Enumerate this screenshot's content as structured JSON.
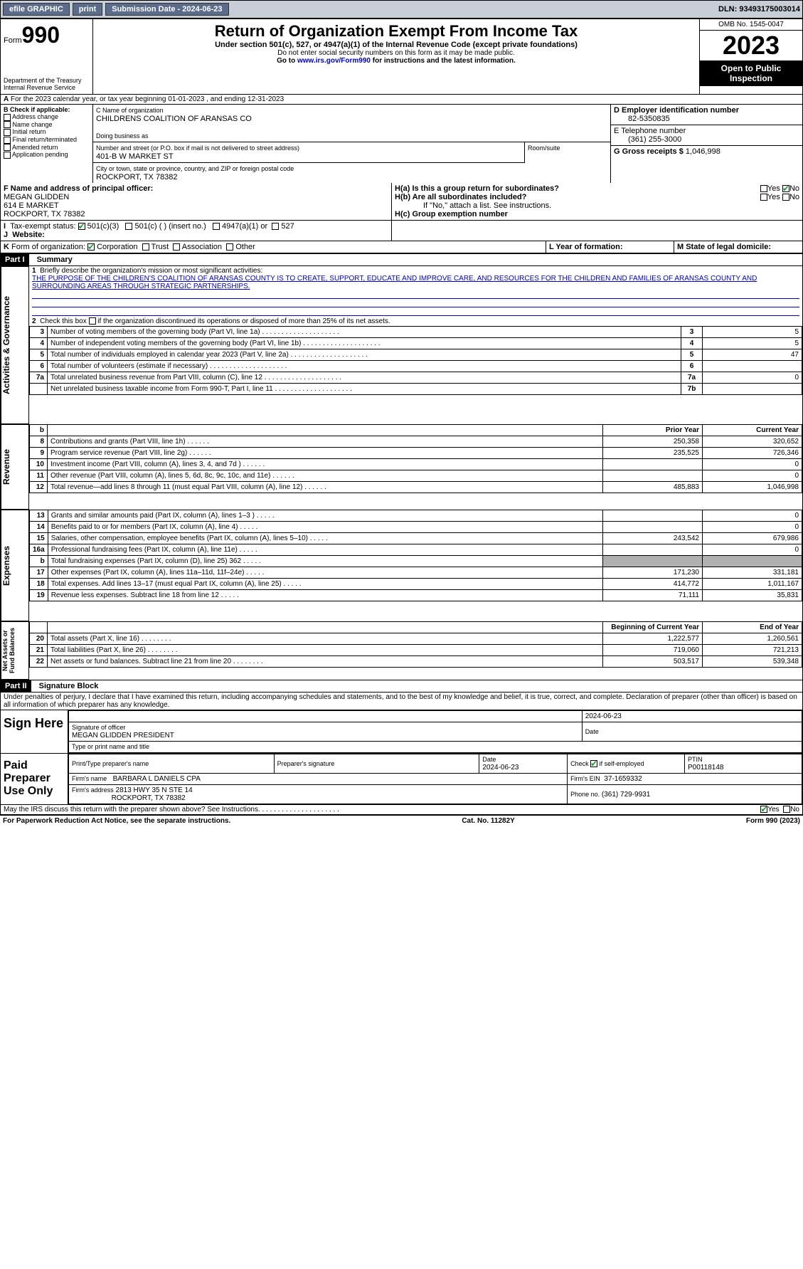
{
  "toolbar": {
    "efile": "efile GRAPHIC",
    "print": "print",
    "submission": "Submission Date - 2024-06-23",
    "dln": "DLN: 93493175003014"
  },
  "header": {
    "form_label": "Form",
    "form_num": "990",
    "dept": "Department of the Treasury Internal Revenue Service",
    "title": "Return of Organization Exempt From Income Tax",
    "sub": "Under section 501(c), 527, or 4947(a)(1) of the Internal Revenue Code (except private foundations)",
    "note1": "Do not enter social security numbers on this form as it may be made public.",
    "note2_pre": "Go to ",
    "note2_link": "www.irs.gov/Form990",
    "note2_post": " for instructions and the latest information.",
    "omb": "OMB No. 1545-0047",
    "year": "2023",
    "inspect": "Open to Public Inspection"
  },
  "line_a": "For the 2023 calendar year, or tax year beginning 01-01-2023    , and ending 12-31-2023",
  "box_b": {
    "title": "B Check if applicable:",
    "opts": [
      "Address change",
      "Name change",
      "Initial return",
      "Final return/terminated",
      "Amended return",
      "Application pending"
    ]
  },
  "box_c": {
    "label_name": "C Name of organization",
    "name": "CHILDRENS COALITION OF ARANSAS CO",
    "dba_label": "Doing business as",
    "addr_label": "Number and street (or P.O. box if mail is not delivered to street address)",
    "addr": "401-B W MARKET ST",
    "room_label": "Room/suite",
    "city_label": "City or town, state or province, country, and ZIP or foreign postal code",
    "city": "ROCKPORT, TX  78382"
  },
  "box_d": {
    "label": "D Employer identification number",
    "val": "82-5350835"
  },
  "box_e": {
    "label": "E Telephone number",
    "val": "(361) 255-3000"
  },
  "box_g": {
    "label": "G Gross receipts $",
    "val": "1,046,998"
  },
  "box_f": {
    "label": "F  Name and address of principal officer:",
    "name": "MEGAN GLIDDEN",
    "addr1": "614 E MARKET",
    "addr2": "ROCKPORT, TX  78382"
  },
  "box_h": {
    "a_label": "H(a)  Is this a group return for subordinates?",
    "b_label": "H(b)  Are all subordinates included?",
    "b_note": "If \"No,\" attach a list. See instructions.",
    "c_label": "H(c)  Group exemption number"
  },
  "box_i": {
    "label": "Tax-exempt status:",
    "o1": "501(c)(3)",
    "o2": "501(c) (  ) (insert no.)",
    "o3": "4947(a)(1) or",
    "o4": "527"
  },
  "box_j": "Website:",
  "box_k": "Form of organization:",
  "k_opts": [
    "Corporation",
    "Trust",
    "Association",
    "Other"
  ],
  "box_l": "L Year of formation:",
  "box_m": "M State of legal domicile:",
  "part1": {
    "hdr": "Part I",
    "title": "Summary"
  },
  "summary": {
    "side_ag": "Activities & Governance",
    "side_rev": "Revenue",
    "side_exp": "Expenses",
    "side_na": "Net Assets or Fund Balances",
    "l1_label": "Briefly describe the organization's mission or most significant activities:",
    "l1_text": "THE PURPOSE OF THE CHILDREN'S COALITION OF ARANSAS COUNTY IS TO CREATE, SUPPORT, EDUCATE AND IMPROVE CARE, AND RESOURCES FOR THE CHILDREN AND FAMILIES OF ARANSAS COUNTY AND SURROUNDING AREAS THROUGH STRATEGIC PARTNERSHIPS.",
    "l2": "Check this box      if the organization discontinued its operations or disposed of more than 25% of its net assets.",
    "rows_ag": [
      {
        "n": "3",
        "t": "Number of voting members of the governing body (Part VI, line 1a)",
        "b": "3",
        "v": "5"
      },
      {
        "n": "4",
        "t": "Number of independent voting members of the governing body (Part VI, line 1b)",
        "b": "4",
        "v": "5"
      },
      {
        "n": "5",
        "t": "Total number of individuals employed in calendar year 2023 (Part V, line 2a)",
        "b": "5",
        "v": "47"
      },
      {
        "n": "6",
        "t": "Total number of volunteers (estimate if necessary)",
        "b": "6",
        "v": ""
      },
      {
        "n": "7a",
        "t": "Total unrelated business revenue from Part VIII, column (C), line 12",
        "b": "7a",
        "v": "0"
      },
      {
        "n": "",
        "t": "Net unrelated business taxable income from Form 990-T, Part I, line 11",
        "b": "7b",
        "v": ""
      }
    ],
    "hdr_prior": "Prior Year",
    "hdr_curr": "Current Year",
    "rows_rev": [
      {
        "n": "8",
        "t": "Contributions and grants (Part VIII, line 1h)",
        "p": "250,358",
        "c": "320,652"
      },
      {
        "n": "9",
        "t": "Program service revenue (Part VIII, line 2g)",
        "p": "235,525",
        "c": "726,346"
      },
      {
        "n": "10",
        "t": "Investment income (Part VIII, column (A), lines 3, 4, and 7d )",
        "p": "",
        "c": "0"
      },
      {
        "n": "11",
        "t": "Other revenue (Part VIII, column (A), lines 5, 6d, 8c, 9c, 10c, and 11e)",
        "p": "",
        "c": "0"
      },
      {
        "n": "12",
        "t": "Total revenue—add lines 8 through 11 (must equal Part VIII, column (A), line 12)",
        "p": "485,883",
        "c": "1,046,998"
      }
    ],
    "rows_exp": [
      {
        "n": "13",
        "t": "Grants and similar amounts paid (Part IX, column (A), lines 1–3 )",
        "p": "",
        "c": "0"
      },
      {
        "n": "14",
        "t": "Benefits paid to or for members (Part IX, column (A), line 4)",
        "p": "",
        "c": "0"
      },
      {
        "n": "15",
        "t": "Salaries, other compensation, employee benefits (Part IX, column (A), lines 5–10)",
        "p": "243,542",
        "c": "679,986"
      },
      {
        "n": "16a",
        "t": "Professional fundraising fees (Part IX, column (A), line 11e)",
        "p": "",
        "c": "0"
      },
      {
        "n": "b",
        "t": "Total fundraising expenses (Part IX, column (D), line 25) 362",
        "p": "grey",
        "c": "grey"
      },
      {
        "n": "17",
        "t": "Other expenses (Part IX, column (A), lines 11a–11d, 11f–24e)",
        "p": "171,230",
        "c": "331,181"
      },
      {
        "n": "18",
        "t": "Total expenses. Add lines 13–17 (must equal Part IX, column (A), line 25)",
        "p": "414,772",
        "c": "1,011,167"
      },
      {
        "n": "19",
        "t": "Revenue less expenses. Subtract line 18 from line 12",
        "p": "71,111",
        "c": "35,831"
      }
    ],
    "hdr_beg": "Beginning of Current Year",
    "hdr_end": "End of Year",
    "rows_na": [
      {
        "n": "20",
        "t": "Total assets (Part X, line 16)",
        "p": "1,222,577",
        "c": "1,260,561"
      },
      {
        "n": "21",
        "t": "Total liabilities (Part X, line 26)",
        "p": "719,060",
        "c": "721,213"
      },
      {
        "n": "22",
        "t": "Net assets or fund balances. Subtract line 21 from line 20",
        "p": "503,517",
        "c": "539,348"
      }
    ]
  },
  "part2": {
    "hdr": "Part II",
    "title": "Signature Block"
  },
  "sig": {
    "perjury": "Under penalties of perjury, I declare that I have examined this return, including accompanying schedules and statements, and to the best of my knowledge and belief, it is true, correct, and complete. Declaration of preparer (other than officer) is based on all information of which preparer has any knowledge.",
    "sign_here": "Sign Here",
    "date1": "2024-06-23",
    "sig_officer": "Signature of officer",
    "officer_name": "MEGAN GLIDDEN  PRESIDENT",
    "type_name": "Type or print name and title",
    "date_lbl": "Date",
    "paid": "Paid Preparer Use Only",
    "prep_name_lbl": "Print/Type preparer's name",
    "prep_sig_lbl": "Preparer's signature",
    "prep_date": "2024-06-23",
    "self_emp": "Check      if self-employed",
    "ptin_lbl": "PTIN",
    "ptin": "P00118148",
    "firm_name_lbl": "Firm's name",
    "firm_name": "BARBARA L DANIELS CPA",
    "firm_ein_lbl": "Firm's EIN",
    "firm_ein": "37-1659332",
    "firm_addr_lbl": "Firm's address",
    "firm_addr1": "2813 HWY 35 N STE 14",
    "firm_addr2": "ROCKPORT, TX  78382",
    "phone_lbl": "Phone no.",
    "phone": "(361) 729-9931",
    "discuss": "May the IRS discuss this return with the preparer shown above? See Instructions.",
    "yes": "Yes",
    "no": "No"
  },
  "footer": {
    "pra": "For Paperwork Reduction Act Notice, see the separate instructions.",
    "cat": "Cat. No. 11282Y",
    "form": "Form 990 (2023)"
  }
}
